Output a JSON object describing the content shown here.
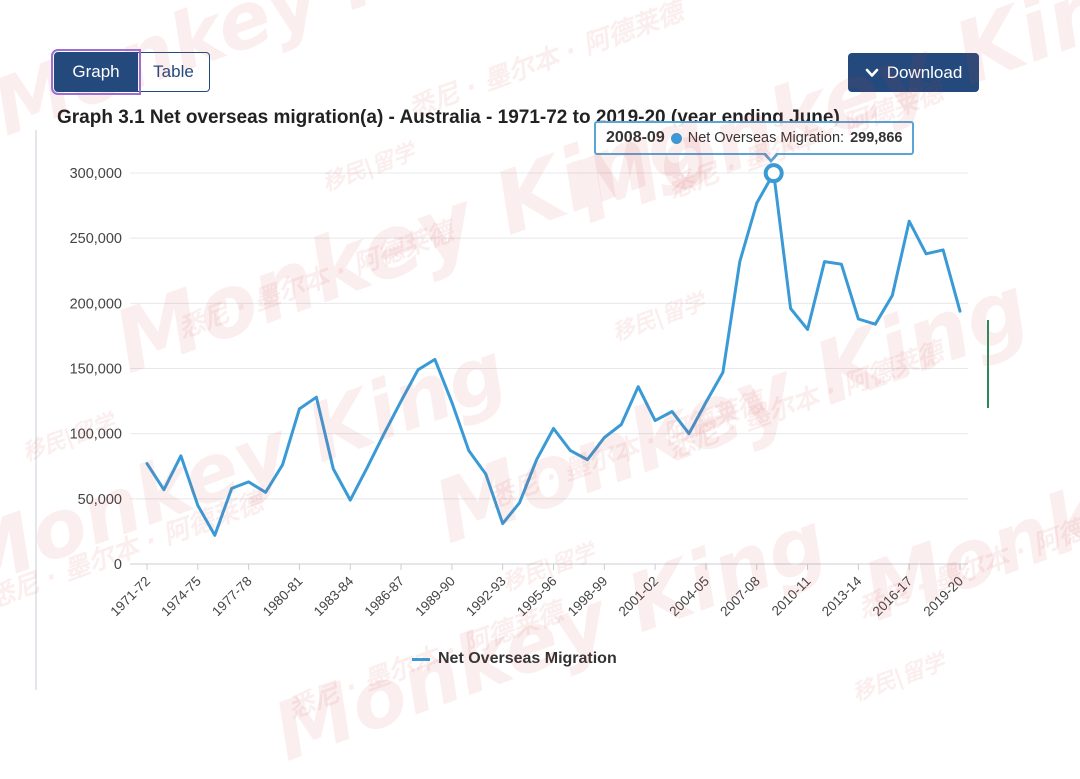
{
  "controls": {
    "graph_label": "Graph",
    "table_label": "Table",
    "download_label": "Download"
  },
  "tooltip": {
    "category": "2008-09",
    "series": "Net Overseas Migration:",
    "value": "299,866"
  },
  "legend": {
    "label": "Net Overseas Migration"
  },
  "watermark": {
    "brand": "Monkey King",
    "tagline": "移民|留学",
    "cities": "悉尼 · 墨尔本 · 阿德莱德"
  },
  "chart_data": {
    "type": "line",
    "title": "Graph 3.1 Net overseas migration(a) - Australia - 1971-72 to 2019-20 (year ending June)",
    "xlabel": "",
    "ylabel": "",
    "ylim": [
      0,
      300000
    ],
    "yticks": [
      0,
      50000,
      100000,
      150000,
      200000,
      250000,
      300000
    ],
    "ytick_labels": [
      "0",
      "50,000",
      "100,000",
      "150,000",
      "200,000",
      "250,000",
      "300,000"
    ],
    "grid": true,
    "legend_position": "bottom-center",
    "highlighted_point": {
      "category": "2008-09",
      "value": 299866
    },
    "categories": [
      "1971-72",
      "1972-73",
      "1973-74",
      "1974-75",
      "1975-76",
      "1976-77",
      "1977-78",
      "1978-79",
      "1979-80",
      "1980-81",
      "1981-82",
      "1982-83",
      "1983-84",
      "1984-85",
      "1985-86",
      "1986-87",
      "1987-88",
      "1988-89",
      "1989-90",
      "1990-91",
      "1991-92",
      "1992-93",
      "1993-94",
      "1994-95",
      "1995-96",
      "1996-97",
      "1997-98",
      "1998-99",
      "1999-00",
      "2000-01",
      "2001-02",
      "2002-03",
      "2003-04",
      "2004-05",
      "2005-06",
      "2006-07",
      "2007-08",
      "2008-09",
      "2009-10",
      "2010-11",
      "2011-12",
      "2012-13",
      "2013-14",
      "2014-15",
      "2015-16",
      "2016-17",
      "2017-18",
      "2018-19",
      "2019-20"
    ],
    "tick_labels": [
      "1971-72",
      "1974-75",
      "1977-78",
      "1980-81",
      "1983-84",
      "1986-87",
      "1989-90",
      "1992-93",
      "1995-96",
      "1998-99",
      "2001-02",
      "2004-05",
      "2007-08",
      "2010-11",
      "2013-14",
      "2016-17",
      "2019-20"
    ],
    "series": [
      {
        "name": "Net Overseas Migration",
        "color": "#3a9ad6",
        "values": [
          77000,
          57000,
          83000,
          45000,
          22000,
          58000,
          63000,
          55000,
          76000,
          119000,
          128000,
          73000,
          49000,
          74000,
          100000,
          125000,
          149000,
          157000,
          124000,
          87000,
          69000,
          31000,
          47000,
          80000,
          104000,
          87000,
          80000,
          97000,
          107000,
          136000,
          110000,
          117000,
          100000,
          124000,
          147000,
          232000,
          277000,
          299866,
          196000,
          180000,
          232000,
          230000,
          188000,
          184000,
          206000,
          263000,
          238000,
          241000,
          194000
        ]
      }
    ]
  }
}
